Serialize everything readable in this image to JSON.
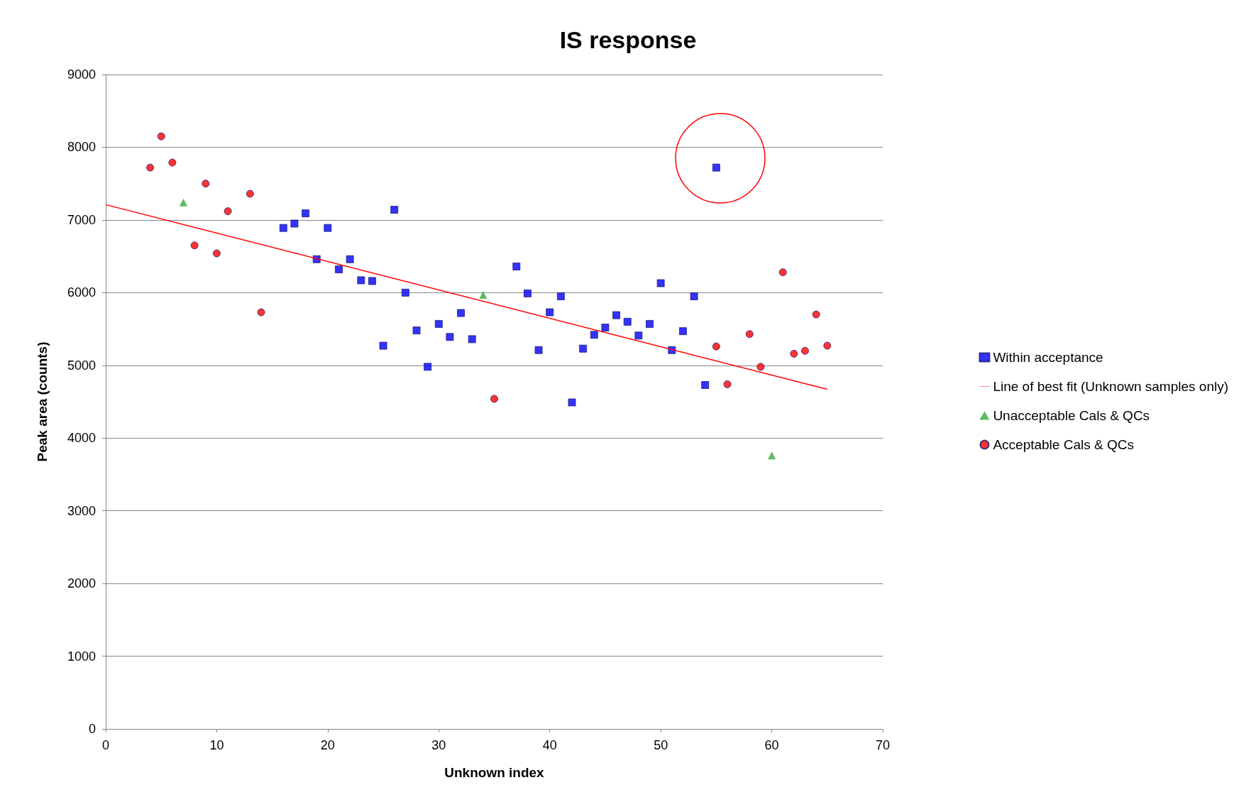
{
  "chart_data": {
    "type": "scatter",
    "title": "IS response",
    "xlabel": "Unknown index",
    "ylabel": "Peak area (counts)",
    "xlim": [
      0,
      70
    ],
    "xticks": [
      0,
      10,
      20,
      30,
      40,
      50,
      60,
      70
    ],
    "ylim": [
      0,
      9000
    ],
    "yticks": [
      0,
      1000,
      2000,
      3000,
      4000,
      5000,
      6000,
      7000,
      8000,
      9000
    ],
    "grid": "y",
    "legend": "right",
    "series": [
      {
        "name": "Within acceptance",
        "type": "scatter",
        "marker": "square",
        "color": "#0000ff",
        "x": [
          16,
          17,
          18,
          19,
          20,
          21,
          22,
          23,
          24,
          25,
          26,
          27,
          28,
          29,
          30,
          31,
          32,
          33,
          37,
          38,
          39,
          40,
          41,
          42,
          43,
          44,
          45,
          46,
          47,
          48,
          49,
          50,
          51,
          52,
          53,
          54,
          55
        ],
        "values": [
          6890,
          6950,
          7090,
          6460,
          6890,
          6320,
          6460,
          6170,
          6160,
          5270,
          7140,
          6000,
          5480,
          4980,
          5570,
          5390,
          5720,
          5360,
          6360,
          5990,
          5210,
          5730,
          5950,
          4490,
          5230,
          5420,
          5520,
          5690,
          5600,
          5410,
          5570,
          6130,
          5210,
          5470,
          5950,
          4730,
          7720
        ]
      },
      {
        "name": "Line of best fit (Unknown samples only)",
        "type": "line",
        "marker": "none",
        "line_style": "solid",
        "color": "#ff0000",
        "x": [
          0,
          65
        ],
        "values": [
          7210,
          4670
        ]
      },
      {
        "name": "Unacceptable Cals & QCs",
        "type": "scatter",
        "marker": "triangle",
        "color": "#33aa33",
        "x": [
          7,
          34,
          60
        ],
        "values": [
          7240,
          5970,
          3760
        ]
      },
      {
        "name": "Acceptable Cals & QCs",
        "type": "scatter",
        "marker": "circle",
        "color": "#ff0000",
        "x": [
          4,
          5,
          6,
          8,
          9,
          10,
          11,
          13,
          14,
          35,
          55,
          56,
          58,
          59,
          61,
          62,
          63,
          64,
          65
        ],
        "values": [
          7720,
          8150,
          7790,
          6650,
          7500,
          6540,
          7120,
          7360,
          5730,
          4540,
          5260,
          4740,
          5430,
          4980,
          6280,
          5160,
          5200,
          5700,
          5270
        ]
      }
    ]
  }
}
